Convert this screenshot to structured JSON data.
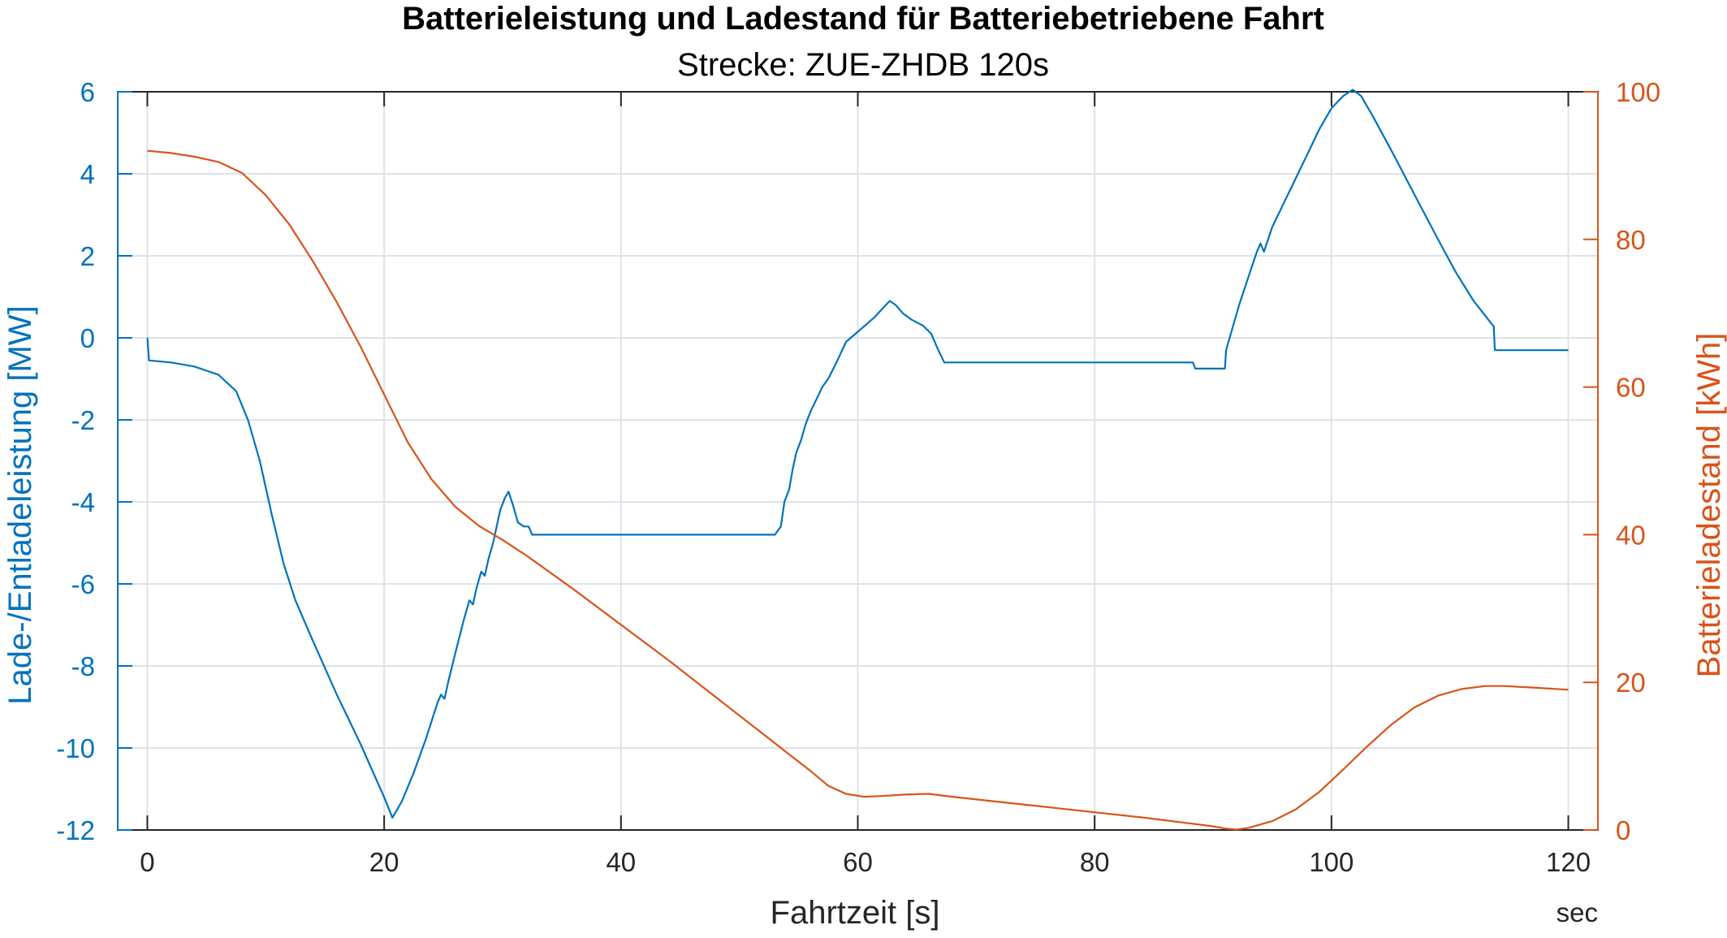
{
  "chart_data": {
    "type": "line",
    "title": "Batterieleistung und Ladestand für Batteriebetriebene Fahrt",
    "subtitle": "Strecke: ZUE-ZHDB 120s",
    "xlabel": "Fahrtzeit [s]",
    "x_unit_label": "sec",
    "xlim": [
      -2.5,
      122.5
    ],
    "x_ticks": [
      0,
      20,
      40,
      60,
      80,
      100,
      120
    ],
    "y_left": {
      "label": "Lade-/Entladeleistung [MW]",
      "lim": [
        -12,
        6
      ],
      "ticks": [
        -12,
        -10,
        -8,
        -6,
        -4,
        -2,
        0,
        2,
        4,
        6
      ],
      "color": "#0072BD"
    },
    "y_right": {
      "label": "Batterieladestand [kWh]",
      "lim": [
        0,
        100
      ],
      "ticks": [
        0,
        20,
        40,
        60,
        80,
        100
      ],
      "color": "#D95319"
    },
    "grid": true,
    "series": [
      {
        "axis": "left",
        "color": "#0072BD",
        "points": [
          [
            0,
            0
          ],
          [
            0.15,
            -0.55
          ],
          [
            2,
            -0.6
          ],
          [
            4,
            -0.7
          ],
          [
            6,
            -0.9
          ],
          [
            7.5,
            -1.3
          ],
          [
            8.5,
            -2.0
          ],
          [
            9.5,
            -3.0
          ],
          [
            10.5,
            -4.3
          ],
          [
            11.5,
            -5.5
          ],
          [
            12.5,
            -6.4
          ],
          [
            14,
            -7.4
          ],
          [
            16,
            -8.7
          ],
          [
            18,
            -9.9
          ],
          [
            20,
            -11.2
          ],
          [
            20.7,
            -11.7
          ],
          [
            21.5,
            -11.3
          ],
          [
            22.5,
            -10.6
          ],
          [
            23.5,
            -9.8
          ],
          [
            24.5,
            -8.9
          ],
          [
            24.8,
            -8.7
          ],
          [
            25.1,
            -8.8
          ],
          [
            25.4,
            -8.4
          ],
          [
            26,
            -7.7
          ],
          [
            26.7,
            -6.9
          ],
          [
            27.2,
            -6.4
          ],
          [
            27.5,
            -6.5
          ],
          [
            27.8,
            -6.1
          ],
          [
            28.2,
            -5.7
          ],
          [
            28.5,
            -5.8
          ],
          [
            28.8,
            -5.4
          ],
          [
            29.2,
            -5.0
          ],
          [
            29.5,
            -4.6
          ],
          [
            29.8,
            -4.2
          ],
          [
            30.2,
            -3.9
          ],
          [
            30.5,
            -3.75
          ],
          [
            30.9,
            -4.1
          ],
          [
            31.3,
            -4.5
          ],
          [
            31.8,
            -4.6
          ],
          [
            32.2,
            -4.6
          ],
          [
            32.5,
            -4.8
          ],
          [
            35,
            -4.8
          ],
          [
            45,
            -4.8
          ],
          [
            53,
            -4.8
          ],
          [
            53.5,
            -4.6
          ],
          [
            53.8,
            -4.0
          ],
          [
            54.2,
            -3.7
          ],
          [
            54.5,
            -3.2
          ],
          [
            54.8,
            -2.8
          ],
          [
            55.2,
            -2.5
          ],
          [
            55.6,
            -2.1
          ],
          [
            56,
            -1.8
          ],
          [
            56.5,
            -1.5
          ],
          [
            57,
            -1.2
          ],
          [
            57.5,
            -1.0
          ],
          [
            58.2,
            -0.6
          ],
          [
            59,
            -0.1
          ],
          [
            59.8,
            0.1
          ],
          [
            60.6,
            0.3
          ],
          [
            61.4,
            0.5
          ],
          [
            62.2,
            0.75
          ],
          [
            62.7,
            0.9
          ],
          [
            63.2,
            0.8
          ],
          [
            63.8,
            0.6
          ],
          [
            64.5,
            0.45
          ],
          [
            65.5,
            0.3
          ],
          [
            66.2,
            0.1
          ],
          [
            66.8,
            -0.3
          ],
          [
            67.3,
            -0.6
          ],
          [
            70,
            -0.6
          ],
          [
            80,
            -0.6
          ],
          [
            88.3,
            -0.6
          ],
          [
            88.5,
            -0.75
          ],
          [
            91,
            -0.75
          ],
          [
            91.1,
            -0.3
          ],
          [
            91.5,
            0.1
          ],
          [
            92.2,
            0.8
          ],
          [
            93,
            1.5
          ],
          [
            93.7,
            2.1
          ],
          [
            94,
            2.3
          ],
          [
            94.3,
            2.1
          ],
          [
            95,
            2.7
          ],
          [
            96,
            3.3
          ],
          [
            97,
            3.9
          ],
          [
            98,
            4.5
          ],
          [
            99,
            5.1
          ],
          [
            100,
            5.6
          ],
          [
            101,
            5.9
          ],
          [
            101.8,
            6.05
          ],
          [
            102.5,
            5.9
          ],
          [
            103.5,
            5.4
          ],
          [
            105,
            4.6
          ],
          [
            107,
            3.5
          ],
          [
            109,
            2.4
          ],
          [
            110.5,
            1.6
          ],
          [
            112,
            0.9
          ],
          [
            113.5,
            0.35
          ],
          [
            113.7,
            0.28
          ],
          [
            113.8,
            -0.3
          ],
          [
            116,
            -0.3
          ],
          [
            120,
            -0.3
          ]
        ]
      },
      {
        "axis": "right",
        "color": "#D95319",
        "points": [
          [
            0,
            92
          ],
          [
            2,
            91.7
          ],
          [
            4,
            91.2
          ],
          [
            6,
            90.5
          ],
          [
            8,
            89
          ],
          [
            10,
            86
          ],
          [
            12,
            82
          ],
          [
            14,
            77
          ],
          [
            16,
            71.5
          ],
          [
            18,
            65.5
          ],
          [
            20,
            59
          ],
          [
            22,
            52.5
          ],
          [
            24,
            47.5
          ],
          [
            26,
            43.8
          ],
          [
            28,
            41.2
          ],
          [
            30,
            39.3
          ],
          [
            32,
            37.2
          ],
          [
            36,
            32.6
          ],
          [
            40,
            27.8
          ],
          [
            44,
            23
          ],
          [
            48,
            18
          ],
          [
            52,
            13
          ],
          [
            54,
            10.5
          ],
          [
            56,
            8
          ],
          [
            57.5,
            6
          ],
          [
            59,
            4.9
          ],
          [
            60.5,
            4.5
          ],
          [
            62,
            4.6
          ],
          [
            64,
            4.8
          ],
          [
            66,
            4.9
          ],
          [
            68,
            4.5
          ],
          [
            72,
            3.8
          ],
          [
            76,
            3.1
          ],
          [
            80,
            2.4
          ],
          [
            84,
            1.7
          ],
          [
            88,
            0.9
          ],
          [
            90,
            0.5
          ],
          [
            91,
            0.2
          ],
          [
            92,
            0.05
          ],
          [
            93,
            0.3
          ],
          [
            95,
            1.2
          ],
          [
            97,
            2.8
          ],
          [
            99,
            5.2
          ],
          [
            101,
            8.2
          ],
          [
            103,
            11.3
          ],
          [
            105,
            14.2
          ],
          [
            107,
            16.6
          ],
          [
            109,
            18.2
          ],
          [
            111,
            19.1
          ],
          [
            113,
            19.5
          ],
          [
            114.5,
            19.5
          ],
          [
            117,
            19.3
          ],
          [
            120,
            19
          ]
        ]
      }
    ]
  }
}
